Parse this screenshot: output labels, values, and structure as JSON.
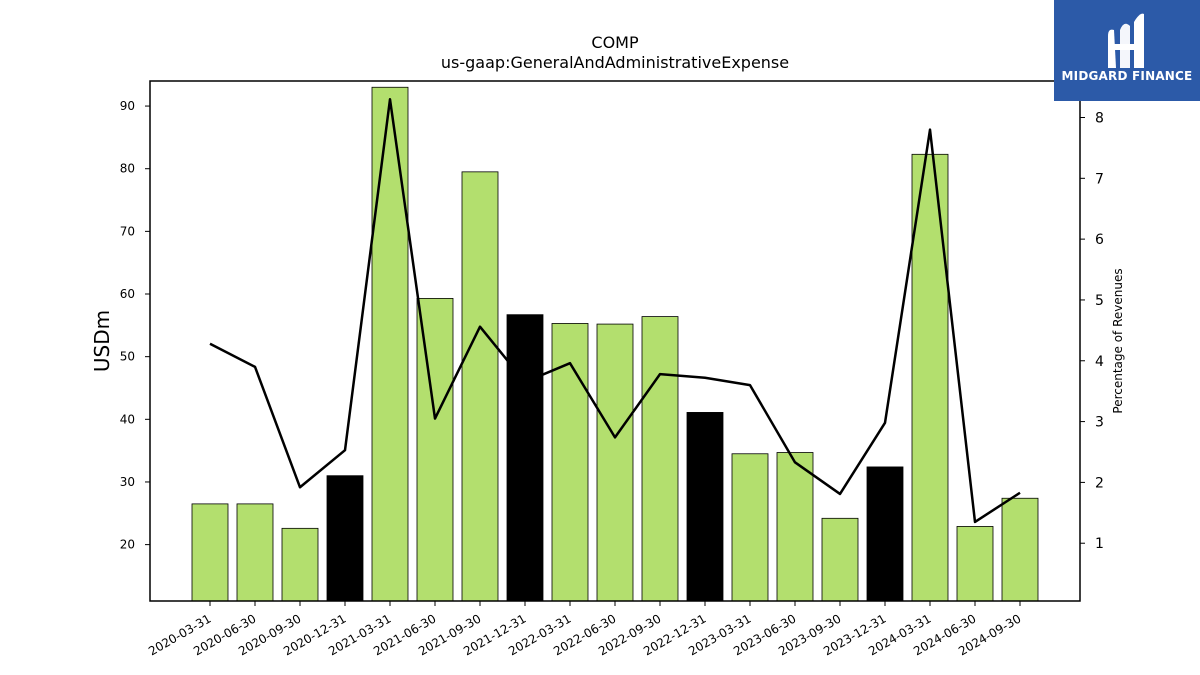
{
  "chart_data": {
    "type": "bar",
    "title": "COMP",
    "subtitle": "us-gaap:GeneralAndAdministrativeExpense",
    "ylabel": "USDm",
    "y2label": "Percentage of Revenues",
    "ylim": [
      11,
      94
    ],
    "y2lim": [
      0.05,
      8.6
    ],
    "yticks": [
      20,
      30,
      40,
      50,
      60,
      70,
      80,
      90
    ],
    "y2ticks": [
      1,
      2,
      3,
      4,
      5,
      6,
      7,
      8
    ],
    "categories": [
      "2020-03-31",
      "2020-06-30",
      "2020-09-30",
      "2020-12-31",
      "2021-03-31",
      "2021-06-30",
      "2021-09-30",
      "2021-12-31",
      "2022-03-31",
      "2022-06-30",
      "2022-09-30",
      "2022-12-31",
      "2023-03-31",
      "2023-06-30",
      "2023-09-30",
      "2023-12-31",
      "2024-03-31",
      "2024-06-30",
      "2024-09-30"
    ],
    "series": [
      {
        "type": "bar",
        "values": [
          26.5,
          26.5,
          22.6,
          31.0,
          93.0,
          59.3,
          79.5,
          56.7,
          55.3,
          55.2,
          56.4,
          41.1,
          34.5,
          34.7,
          24.2,
          32.4,
          82.3,
          22.9,
          27.4
        ],
        "colors": [
          "#b3df6e",
          "#b3df6e",
          "#b3df6e",
          "#000000",
          "#b3df6e",
          "#b3df6e",
          "#b3df6e",
          "#000000",
          "#b3df6e",
          "#b3df6e",
          "#b3df6e",
          "#000000",
          "#b3df6e",
          "#b3df6e",
          "#b3df6e",
          "#000000",
          "#b3df6e",
          "#b3df6e",
          "#b3df6e"
        ]
      },
      {
        "type": "line",
        "axis": "right",
        "values": [
          4.28,
          3.9,
          1.92,
          2.53,
          8.3,
          3.05,
          4.56,
          3.65,
          3.96,
          2.74,
          3.78,
          3.72,
          3.6,
          2.33,
          1.81,
          2.98,
          7.8,
          1.35,
          1.83
        ],
        "color": "#000000"
      }
    ],
    "grid": false
  },
  "logo": {
    "text": "MIDGARD FINANCE",
    "color": "#2c5aa8"
  }
}
